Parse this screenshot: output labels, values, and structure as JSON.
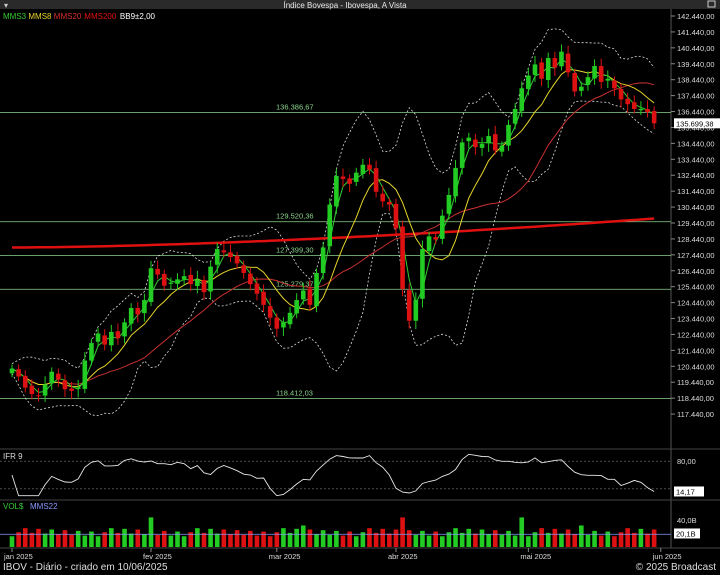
{
  "title": "Índice Bovespa - Ibovespa, A Vista",
  "legend": [
    {
      "label": "MMS3",
      "color": "#33cc33"
    },
    {
      "label": "MMS8",
      "color": "#e6d52a"
    },
    {
      "label": "MMS20",
      "color": "#d83030"
    },
    {
      "label": "MMS200",
      "color": "#e01010"
    },
    {
      "label": "BB9±2,00",
      "color": "#ffffff"
    }
  ],
  "footer_left": "IBOV - Diário - criado em 10/06/2025",
  "footer_right": "© 2025 Broadcast",
  "rsi_label": "IFR 9",
  "vol_label_1": "VOL$",
  "vol_label_2": "MMS22",
  "colors": {
    "up": "#22cc22",
    "down": "#dd1111",
    "ma3": "#33cc33",
    "ma8": "#e6d52a",
    "ma20": "#c83030",
    "ma200": "#e01010",
    "bb": "#dddddd",
    "hline": "#8cd48c"
  },
  "chart_data": {
    "type": "candlestick",
    "ylim": [
      116440,
      142440
    ],
    "y_ticks": [
      "142.440,00",
      "141.440,00",
      "140.440,00",
      "139.440,00",
      "138.440,00",
      "137.440,00",
      "136.440,00",
      "135.440,00",
      "134.440,00",
      "133.440,00",
      "132.440,00",
      "131.440,00",
      "130.440,00",
      "129.440,00",
      "128.440,00",
      "127.440,00",
      "126.440,00",
      "125.440,00",
      "124.440,00",
      "123.440,00",
      "122.440,00",
      "121.440,00",
      "120.440,00",
      "119.440,00",
      "118.440,00",
      "117.440,00"
    ],
    "last_price": "135.699,38",
    "horizontal_lines": [
      {
        "value": 136386.67,
        "label": "136.386,67"
      },
      {
        "value": 129520.36,
        "label": "129.520,36"
      },
      {
        "value": 127399.3,
        "label": "127.399,30"
      },
      {
        "value": 125279.37,
        "label": "125.279,37"
      },
      {
        "value": 118412.03,
        "label": "118.412,03"
      }
    ],
    "x_labels": [
      "jan 2025",
      "fev 2025",
      "mar 2025",
      "abr 2025",
      "mai 2025",
      "jun 2025"
    ],
    "x_label_index": [
      0,
      21,
      40,
      58,
      78,
      98
    ],
    "close": [
      120300,
      119800,
      119100,
      118700,
      118600,
      119300,
      120100,
      119600,
      119000,
      118900,
      119100,
      120800,
      121900,
      122500,
      121800,
      122600,
      122200,
      123200,
      124100,
      123700,
      124600,
      126600,
      126200,
      125500,
      125700,
      125900,
      126100,
      125600,
      125900,
      125100,
      126700,
      127800,
      127600,
      127300,
      126900,
      126300,
      125600,
      125000,
      124300,
      123500,
      122800,
      123200,
      123800,
      124600,
      125200,
      124300,
      126300,
      127900,
      130600,
      132400,
      132200,
      131900,
      132600,
      133100,
      132800,
      131400,
      130800,
      130600,
      129100,
      125300,
      123300,
      124600,
      127800,
      128600,
      128400,
      129900,
      131200,
      132900,
      134500,
      134800,
      134200,
      134400,
      134900,
      134000,
      134300,
      135600,
      136600,
      137900,
      138700,
      139400,
      138500,
      139800,
      139200,
      140200,
      138900,
      137700,
      138000,
      138600,
      139300,
      138300,
      138500,
      137900,
      137200,
      136900,
      136600,
      136600,
      136400,
      135700
    ],
    "ma200_start": 127900,
    "ma200_end": 129720,
    "rsi": {
      "levels": [
        "80,00"
      ],
      "last": "14,17"
    },
    "volume": {
      "tick": "40,0B",
      "last": "20,1B"
    }
  }
}
